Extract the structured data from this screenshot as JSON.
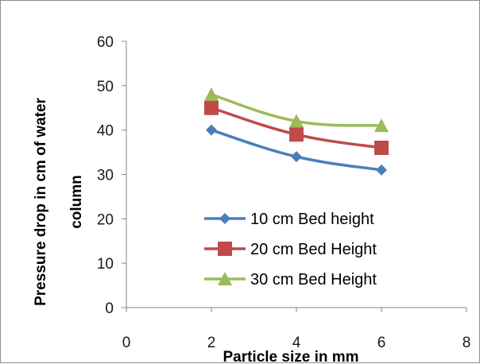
{
  "chart_data": {
    "type": "line",
    "title": "",
    "xlabel": "Particle size in mm",
    "ylabel_lines": [
      "Pressure drop in cm of water",
      "column"
    ],
    "xlim": [
      0,
      8
    ],
    "ylim": [
      0,
      60
    ],
    "x_ticks": [
      0,
      2,
      4,
      6,
      8
    ],
    "y_ticks": [
      0,
      10,
      20,
      30,
      40,
      50,
      60
    ],
    "grid": false,
    "legend_position": "bottom-right inside plot",
    "x": [
      2,
      4,
      6
    ],
    "series": [
      {
        "name": "10 cm Bed height",
        "values": [
          40,
          34,
          31
        ],
        "color": "#4a7ebb",
        "marker": "diamond"
      },
      {
        "name": "20 cm Bed Height",
        "values": [
          45,
          39,
          36
        ],
        "color": "#be4b48",
        "marker": "square"
      },
      {
        "name": "30 cm Bed Height",
        "values": [
          48,
          42,
          41
        ],
        "color": "#9bbb59",
        "marker": "triangle"
      }
    ]
  }
}
